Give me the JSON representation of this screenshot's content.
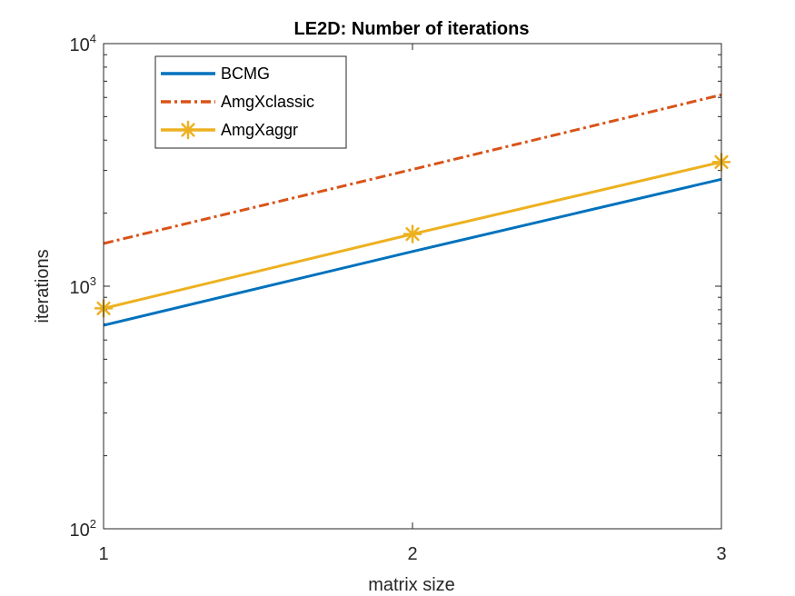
{
  "chart_data": {
    "type": "line",
    "title": "LE2D: Number of iterations",
    "xlabel": "matrix size",
    "ylabel": "iterations",
    "yscale": "log",
    "xlim": [
      1,
      3
    ],
    "ylim": [
      100,
      10000
    ],
    "x": [
      1,
      2,
      3
    ],
    "x_ticks": [
      "1",
      "2",
      "3"
    ],
    "y_ticks": [
      {
        "value": 100,
        "base": "10",
        "exp": "2"
      },
      {
        "value": 1000,
        "base": "10",
        "exp": "3"
      },
      {
        "value": 10000,
        "base": "10",
        "exp": "4"
      }
    ],
    "legend_position": "top-left",
    "series": [
      {
        "name": "BCMG",
        "values": [
          690,
          1390,
          2760
        ],
        "color": "#0072BD",
        "style": "solid",
        "marker": "none"
      },
      {
        "name": "AmgXclassic",
        "values": [
          1500,
          3030,
          6150
        ],
        "color": "#D95319",
        "style": "dashdot",
        "marker": "none"
      },
      {
        "name": "AmgXaggr",
        "values": [
          810,
          1640,
          3250
        ],
        "color": "#EDB120",
        "style": "solid",
        "marker": "asterisk"
      }
    ]
  }
}
